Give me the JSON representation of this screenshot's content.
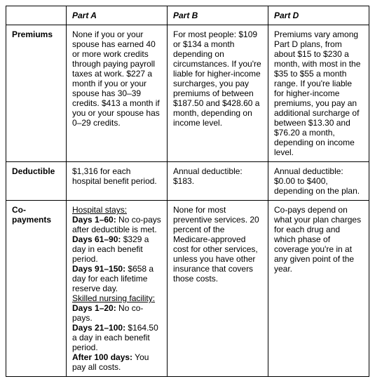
{
  "columns": {
    "a": "Part A",
    "b": "Part B",
    "d": "Part D"
  },
  "rows": {
    "premiums": {
      "label": "Premiums",
      "a": [
        {
          "t": "None if you or your spouse has earned 40 or more work credits through paying payroll taxes at work. $227 a month if you or your spouse has 30–39 credits. $413 a month if you or your spouse has 0–29 credits."
        }
      ],
      "b": [
        {
          "t": "For most people: $109 or $134 a month depending on circumstances. If you're liable for higher-income surcharges, you pay premiums of between $187.50 and $428.60 a month, depending on income level."
        }
      ],
      "d": [
        {
          "t": "Premiums vary among Part D plans, from about $15 to $230 a month, with most in the $35 to $55 a month range. If you're liable for higher-income premiums, you pay an additional surcharge of between $13.30 and $76.20 a month, depending on income level."
        }
      ]
    },
    "deductible": {
      "label": "Deductible",
      "a": [
        {
          "t": "$1,316 for each hospital benefit period."
        }
      ],
      "b": [
        {
          "t": "Annual deductible: $183."
        }
      ],
      "d": [
        {
          "t": "Annual deductible: $0.00 to $400, depending on the plan."
        }
      ]
    },
    "copayments": {
      "label": "Co-payments",
      "a": [
        {
          "t": "Hospital stays:",
          "u": true,
          "br": true
        },
        {
          "t": "Days 1–60:",
          "b": true
        },
        {
          "t": " No co-pays after deductible is met.",
          "br": true
        },
        {
          "t": "Days 61–90:",
          "b": true
        },
        {
          "t": " $329 a day in each benefit period.",
          "br": true
        },
        {
          "t": "Days 91–150:",
          "b": true
        },
        {
          "t": " $658 a day for each lifetime reserve day.",
          "br": true
        },
        {
          "t": "Skilled nursing facility:",
          "u": true,
          "br": true
        },
        {
          "t": "Days 1–20:",
          "b": true
        },
        {
          "t": " No co-pays.",
          "br": true
        },
        {
          "t": "Days 21–100:",
          "b": true
        },
        {
          "t": " $164.50 a day in each benefit period.",
          "br": true
        },
        {
          "t": "After 100 days:",
          "b": true
        },
        {
          "t": " You pay all costs."
        }
      ],
      "b": [
        {
          "t": "None for most preventive services. 20 percent of the Medicare-approved cost for other services, unless you have other insurance that covers those costs."
        }
      ],
      "d": [
        {
          "t": "Co-pays depend on what your plan charges for each drug and which phase of coverage you're in at any given point of the year."
        }
      ]
    }
  }
}
